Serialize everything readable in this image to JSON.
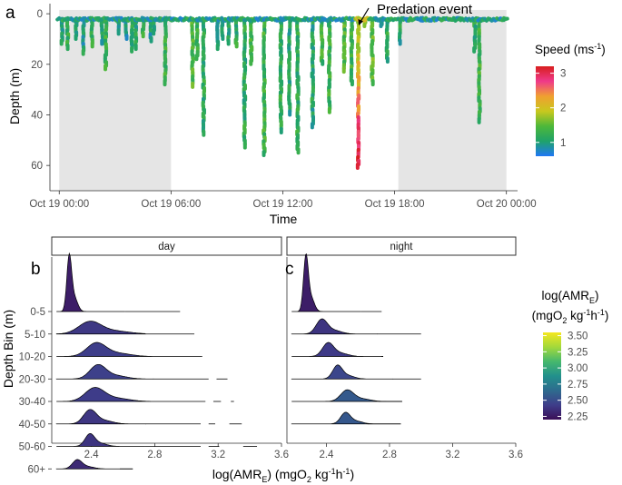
{
  "chart_data": [
    {
      "panel": "a",
      "type": "line",
      "xlabel": "Time",
      "ylabel": "Depth (m)",
      "x_ticks": [
        "Oct 19 00:00",
        "Oct 19 06:00",
        "Oct 19 12:00",
        "Oct 19 18:00",
        "Oct 20 00:00"
      ],
      "x_range_hours": [
        -0.5,
        24.6
      ],
      "ylim": [
        70,
        -4
      ],
      "y_ticks": [
        0,
        20,
        40,
        60
      ],
      "night_shading_hours": [
        [
          0.0,
          6.0
        ],
        [
          18.2,
          24.0
        ]
      ],
      "annotation": "Predation event",
      "annotation_hour": 16.1,
      "surface_depth": 2,
      "dives": [
        {
          "t": 0.15,
          "depth": 12,
          "speed": 1.1
        },
        {
          "t": 0.45,
          "depth": 14,
          "speed": 1.2
        },
        {
          "t": 0.9,
          "depth": 10,
          "speed": 1.1
        },
        {
          "t": 1.3,
          "depth": 16,
          "speed": 1.0
        },
        {
          "t": 1.75,
          "depth": 13,
          "speed": 1.2
        },
        {
          "t": 2.3,
          "depth": 12,
          "speed": 1.1
        },
        {
          "t": 2.5,
          "depth": 22,
          "speed": 1.3
        },
        {
          "t": 3.2,
          "depth": 8,
          "speed": 1.1
        },
        {
          "t": 3.6,
          "depth": 10,
          "speed": 1.0
        },
        {
          "t": 3.9,
          "depth": 15,
          "speed": 1.2
        },
        {
          "t": 4.1,
          "depth": 14,
          "speed": 1.1
        },
        {
          "t": 4.5,
          "depth": 9,
          "speed": 1.2
        },
        {
          "t": 4.9,
          "depth": 11,
          "speed": 1.0
        },
        {
          "t": 5.1,
          "depth": 8,
          "speed": 1.1
        },
        {
          "t": 5.7,
          "depth": 28,
          "speed": 1.3
        },
        {
          "t": 7.15,
          "depth": 29,
          "speed": 1.4
        },
        {
          "t": 7.4,
          "depth": 18,
          "speed": 1.3
        },
        {
          "t": 7.75,
          "depth": 48,
          "speed": 1.2
        },
        {
          "t": 8.5,
          "depth": 14,
          "speed": 1.1
        },
        {
          "t": 8.75,
          "depth": 10,
          "speed": 1.0
        },
        {
          "t": 9.1,
          "depth": 12,
          "speed": 1.1
        },
        {
          "t": 9.5,
          "depth": 13,
          "speed": 1.2
        },
        {
          "t": 9.95,
          "depth": 53,
          "speed": 1.2
        },
        {
          "t": 10.3,
          "depth": 20,
          "speed": 1.3
        },
        {
          "t": 11.0,
          "depth": 56,
          "speed": 1.3
        },
        {
          "t": 11.9,
          "depth": 47,
          "speed": 1.2
        },
        {
          "t": 12.35,
          "depth": 40,
          "speed": 1.1
        },
        {
          "t": 12.8,
          "depth": 55,
          "speed": 1.2
        },
        {
          "t": 13.6,
          "depth": 45,
          "speed": 1.1
        },
        {
          "t": 14.1,
          "depth": 20,
          "speed": 1.3
        },
        {
          "t": 14.5,
          "depth": 39,
          "speed": 1.3
        },
        {
          "t": 15.3,
          "depth": 23,
          "speed": 1.4
        },
        {
          "t": 15.7,
          "depth": 28,
          "speed": 1.3
        },
        {
          "t": 16.05,
          "depth": 61,
          "speed": 2.6
        },
        {
          "t": 16.4,
          "depth": 5,
          "speed": 1.8
        },
        {
          "t": 16.8,
          "depth": 28,
          "speed": 1.5
        },
        {
          "t": 17.3,
          "depth": 5,
          "speed": 1.1
        },
        {
          "t": 17.6,
          "depth": 19,
          "speed": 1.2
        },
        {
          "t": 18.3,
          "depth": 12,
          "speed": 1.1
        },
        {
          "t": 22.3,
          "depth": 15,
          "speed": 1.2
        },
        {
          "t": 22.55,
          "depth": 43,
          "speed": 1.3
        }
      ],
      "colorbar": {
        "title": "Speed (ms⁻¹)",
        "ticks": [
          1,
          2,
          3
        ],
        "range": [
          0.6,
          3.2
        ],
        "colors": [
          "#1f77f5",
          "#1fa26a",
          "#4db83a",
          "#c8c81e",
          "#f0a030",
          "#ef3a8a",
          "#d81e1e"
        ]
      }
    },
    {
      "panel": "b",
      "type": "ridgeline",
      "strip": "day",
      "xlabel": "log(AMR_E) (mgO2 kg-1h-1)",
      "ylabel": "Depth Bin (m)",
      "xlim": [
        2.15,
        3.6
      ],
      "x_ticks": [
        2.4,
        2.8,
        3.2,
        3.6
      ],
      "categories": [
        "0-5",
        "5-10",
        "10-20",
        "20-30",
        "30-40",
        "40-50",
        "50-60",
        "60+"
      ],
      "ridges": [
        {
          "bin": "0-5",
          "peak": 2.26,
          "width": 0.015,
          "height": 1.6,
          "tail_end": 3.0,
          "mean": 2.27
        },
        {
          "bin": "5-10",
          "peak": 2.39,
          "width": 0.07,
          "height": 0.55,
          "tail_end": 3.05,
          "mean": 2.4
        },
        {
          "bin": "10-20",
          "peak": 2.43,
          "width": 0.06,
          "height": 0.6,
          "tail_end": 3.1,
          "mean": 2.43
        },
        {
          "bin": "20-30",
          "peak": 2.44,
          "width": 0.05,
          "height": 0.62,
          "tail_end": 3.3,
          "mean": 2.44
        },
        {
          "bin": "30-40",
          "peak": 2.42,
          "width": 0.06,
          "height": 0.6,
          "tail_end": 3.3,
          "mean": 2.42
        },
        {
          "bin": "40-50",
          "peak": 2.39,
          "width": 0.04,
          "height": 0.62,
          "tail_end": 3.4,
          "mean": 2.39
        },
        {
          "bin": "50-60",
          "peak": 2.39,
          "width": 0.03,
          "height": 0.55,
          "tail_end": 3.55,
          "mean": 2.38
        },
        {
          "bin": "60+",
          "peak": 2.31,
          "width": 0.03,
          "height": 0.4,
          "tail_end": 2.58,
          "mean": 2.33
        }
      ]
    },
    {
      "panel": "c",
      "type": "ridgeline",
      "strip": "night",
      "xlim": [
        2.15,
        3.6
      ],
      "x_ticks": [
        2.4,
        2.8,
        3.2,
        3.6
      ],
      "categories": [
        "0-5",
        "5-10",
        "10-20",
        "20-30",
        "30-40",
        "40-50",
        "50-60",
        "60+"
      ],
      "ridges": [
        {
          "bin": "0-5",
          "peak": 2.27,
          "width": 0.015,
          "height": 1.6,
          "tail_end": 2.75,
          "mean": 2.27
        },
        {
          "bin": "5-10",
          "peak": 2.37,
          "width": 0.035,
          "height": 0.65,
          "tail_end": 3.0,
          "mean": 2.38
        },
        {
          "bin": "10-20",
          "peak": 2.41,
          "width": 0.035,
          "height": 0.6,
          "tail_end": 2.75,
          "mean": 2.41
        },
        {
          "bin": "20-30",
          "peak": 2.47,
          "width": 0.03,
          "height": 0.6,
          "tail_end": 3.0,
          "mean": 2.47
        },
        {
          "bin": "30-40",
          "peak": 2.53,
          "width": 0.04,
          "height": 0.5,
          "tail_end": 2.73,
          "mean": 2.56
        },
        {
          "bin": "40-50",
          "peak": 2.52,
          "width": 0.03,
          "height": 0.5,
          "tail_end": 2.66,
          "mean": 2.55
        }
      ],
      "colorbar": {
        "title_line1": "log(AMR_E)",
        "title_line2": "(mgO2 kg-1h-1)",
        "ticks": [
          2.25,
          2.5,
          2.75,
          3.0,
          3.25,
          3.5
        ],
        "tick_labels": [
          "2.25",
          "2.50",
          "2.75",
          "3.00",
          "3.25",
          "3.50"
        ],
        "range": [
          2.2,
          3.55
        ],
        "colors": [
          "#3b0f57",
          "#3e3d8a",
          "#2e6b8e",
          "#22908c",
          "#46b86d",
          "#a3d93b",
          "#f5e71f"
        ]
      }
    }
  ],
  "labels": {
    "panel_a": "a",
    "panel_b": "b",
    "panel_c": "c",
    "a_xlabel": "Time",
    "a_ylabel": "Depth (m)",
    "annotation": "Predation event",
    "speed_title": "Speed (ms",
    "speed_title_sup": "-1",
    "speed_title_end": ")",
    "strip_day": "day",
    "strip_night": "night",
    "b_ylabel": "Depth Bin (m)",
    "b_xlabel_pre": "log(AMR",
    "b_xlabel_sub": "E",
    "b_xlabel_mid": ") (mgO",
    "b_xlabel_sub2": "2",
    "b_xlabel_kg": " kg",
    "b_xlabel_sup1": "-1",
    "b_xlabel_h": "h",
    "b_xlabel_sup2": "-1",
    "b_xlabel_end": ")",
    "amr_title1_pre": "log(AMR",
    "amr_title1_sub": "E",
    "amr_title1_end": ")",
    "amr_title2_pre": "(mgO",
    "amr_title2_sub": "2",
    "amr_title2_kg": " kg",
    "amr_title2_sup1": "-1",
    "amr_title2_h": "h",
    "amr_title2_sup2": "-1",
    "amr_title2_end": ")"
  }
}
